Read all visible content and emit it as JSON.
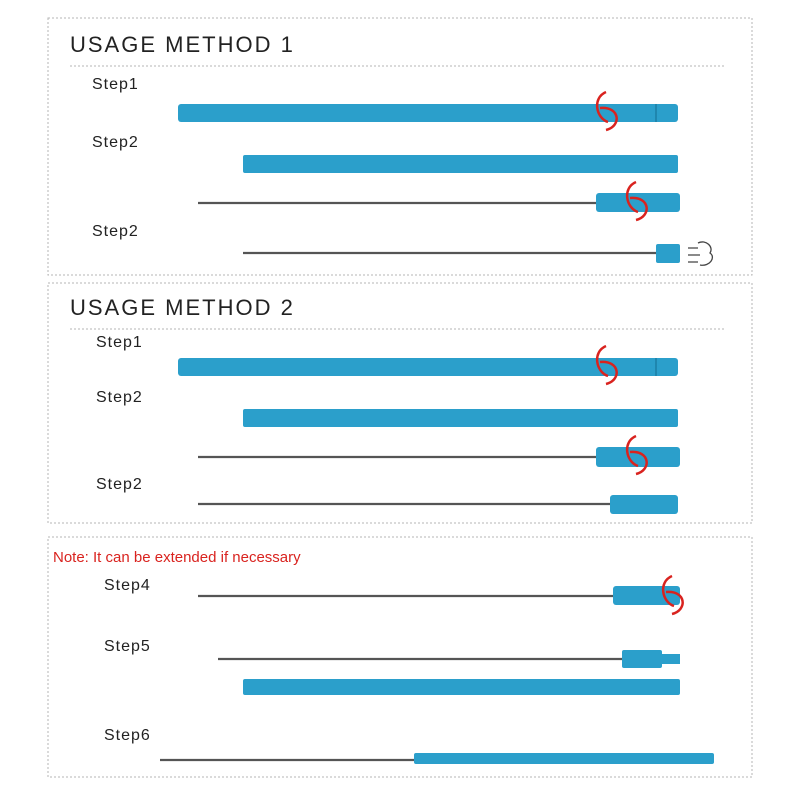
{
  "sections": [
    {
      "title": "USAGE METHOD 1",
      "steps": [
        "Step1",
        "Step2",
        "Step2"
      ]
    },
    {
      "title": "USAGE METHOD 2",
      "steps": [
        "Step1",
        "Step2",
        "Step2"
      ]
    },
    {
      "note": "Note: It can be extended if necessary",
      "steps": [
        "Step4",
        "Step5",
        "Step6"
      ]
    }
  ]
}
